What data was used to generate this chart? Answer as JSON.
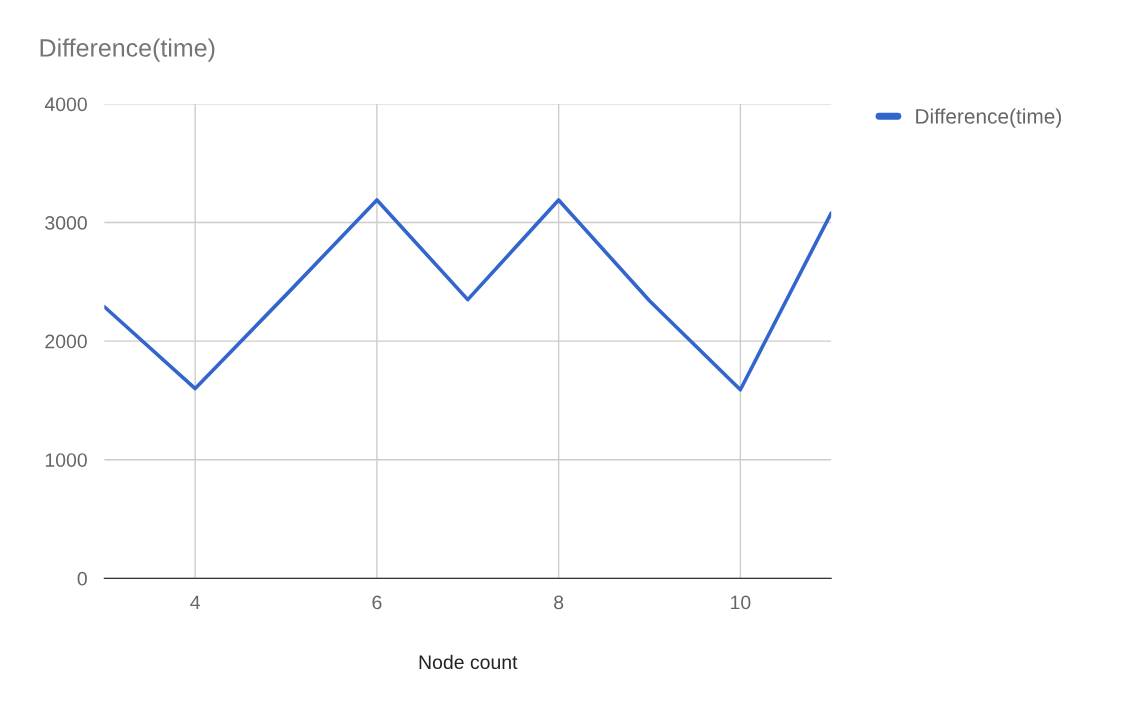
{
  "chart_data": {
    "type": "line",
    "title": "Difference(time)",
    "xlabel": "Node count",
    "x": [
      3,
      4,
      5,
      6,
      7,
      8,
      9,
      10,
      11
    ],
    "series": [
      {
        "name": "Difference(time)",
        "color": "#3366cc",
        "values": [
          2290,
          1600,
          2390,
          3190,
          2350,
          3190,
          2340,
          1590,
          3080
        ]
      }
    ],
    "xlim": [
      3,
      11
    ],
    "xticks": [
      4,
      6,
      8,
      10
    ],
    "ylim": [
      0,
      4000
    ],
    "yticks": [
      0,
      1000,
      2000,
      3000,
      4000
    ],
    "grid": true,
    "legend": "top right",
    "marker": "none",
    "line_style": "solid"
  }
}
